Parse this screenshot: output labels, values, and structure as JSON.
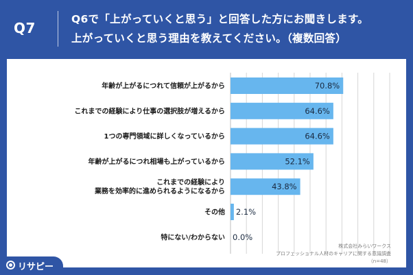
{
  "header": {
    "question_number": "Q7",
    "question_line1": "Q6で「上がっていくと思う」と回答した方にお聞きします。",
    "question_line2": "上がっていくと思う理由を教えてください。（複数回答）"
  },
  "chart_data": {
    "type": "bar",
    "orientation": "horizontal",
    "categories": [
      [
        "年齢が上がるにつれて信頼が上がるから"
      ],
      [
        "これまでの経験により仕事の選択肢が増えるから"
      ],
      [
        "1つの専門領域に詳しくなっているから"
      ],
      [
        "年齢が上がるにつれ相場も上がっているから"
      ],
      [
        "これまでの経験により",
        "業務を効率的に進められるようになるから"
      ],
      [
        "その他"
      ],
      [
        "特にない/わからない"
      ]
    ],
    "values": [
      70.8,
      64.6,
      64.6,
      52.1,
      43.8,
      2.1,
      0.0
    ],
    "value_labels": [
      "70.8%",
      "64.6%",
      "64.6%",
      "52.1%",
      "43.8%",
      "2.1%",
      "0.0%"
    ],
    "xlim": [
      0,
      100
    ],
    "bar_color": "#67b6ee"
  },
  "footer": {
    "source_company": "株式会社みらいワークス",
    "source_survey": "プロフェッショナル人材のキャリアに関する意識調査",
    "sample_size": "（n=48）"
  },
  "brand": {
    "name": "リサピー"
  },
  "colors": {
    "background": "#2f55a5",
    "panel": "#ffffff",
    "bar": "#67b6ee",
    "grid": "#d6d6d6"
  }
}
